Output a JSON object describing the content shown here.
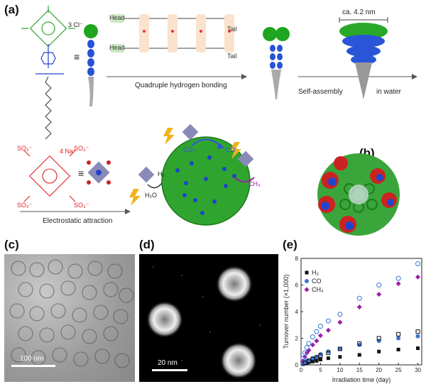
{
  "panels": {
    "a": "(a)",
    "b": "(b)",
    "c": "(c)",
    "d": "(d)",
    "e": "(e)"
  },
  "panel_a": {
    "counterion": "3 Cl⁻",
    "head_label": "Head",
    "tail_label": "Tail",
    "bonding_caption": "Quadruple hydrogen bonding",
    "size_label": "ca. 4.2 nm",
    "self_assembly": "Self-assembly",
    "in_water": "in water",
    "equivalent": "≡",
    "salt_label": "4 Na⁺",
    "so3": "SO₃⁻",
    "h2": "H₂",
    "h2o": "H₂O",
    "co2": "CO₂",
    "co": "CO",
    "ch4": "CH₄",
    "electrostatic": "Electrostatic attraction"
  },
  "panel_c": {
    "scale_bar": "100 nm"
  },
  "panel_d": {
    "scale_bar": "20 nm"
  },
  "colors": {
    "green": "#2fa52f",
    "blue": "#2244cc",
    "red": "#cc2222",
    "purple": "#9b1fa8",
    "co_blue": "#3a73d6"
  },
  "chart_data": {
    "type": "scatter",
    "xlabel": "Irradiation time (day)",
    "ylabel": "Turnover number (×1,000)",
    "xlim": [
      0,
      31
    ],
    "ylim": [
      0,
      8
    ],
    "xticks": [
      0,
      5,
      10,
      15,
      20,
      25,
      30
    ],
    "yticks": [
      0,
      2,
      4,
      6,
      8
    ],
    "legend": "top-left",
    "series": [
      {
        "name": "H₂",
        "marker": "square",
        "color": "#111111",
        "x": [
          0.5,
          1,
          1.5,
          2,
          3,
          4,
          5,
          7,
          10,
          15,
          20,
          25,
          30
        ],
        "y": [
          0.05,
          0.1,
          0.15,
          0.2,
          0.25,
          0.3,
          0.4,
          0.5,
          0.6,
          0.75,
          1.0,
          1.15,
          1.25
        ]
      },
      {
        "name": "CO",
        "marker": "circle",
        "color": "#3a73d6",
        "x": [
          0.5,
          1,
          1.5,
          2,
          3,
          4,
          5,
          7,
          10,
          15,
          20,
          25,
          30
        ],
        "y": [
          0.1,
          0.2,
          0.3,
          0.35,
          0.5,
          0.6,
          0.8,
          1.0,
          1.2,
          1.5,
          1.8,
          2.0,
          2.15
        ]
      },
      {
        "name": "CH₄",
        "marker": "diamond",
        "color": "#9b1fa8",
        "x": [
          0.5,
          1,
          1.5,
          2,
          3,
          4,
          5,
          7,
          10,
          15,
          20,
          25,
          30
        ],
        "y": [
          0.3,
          0.6,
          0.9,
          1.1,
          1.5,
          1.8,
          2.2,
          2.6,
          3.2,
          4.35,
          5.3,
          6.1,
          6.6
        ]
      },
      {
        "name": "",
        "marker": "open-square",
        "color": "#111111",
        "x": [
          1,
          2,
          3,
          4,
          5,
          7,
          10,
          15,
          20,
          25,
          30
        ],
        "y": [
          0.15,
          0.3,
          0.45,
          0.55,
          0.7,
          0.9,
          1.2,
          1.6,
          2.0,
          2.3,
          2.5
        ]
      },
      {
        "name": "",
        "marker": "open-circle",
        "color": "#3a73d6",
        "x": [
          0.5,
          1,
          1.5,
          2,
          3,
          4,
          5,
          7,
          10,
          15,
          20,
          25,
          30
        ],
        "y": [
          0.5,
          0.9,
          1.3,
          1.6,
          2.1,
          2.5,
          2.9,
          3.3,
          3.8,
          5.0,
          6.0,
          6.5,
          7.6
        ]
      }
    ]
  }
}
